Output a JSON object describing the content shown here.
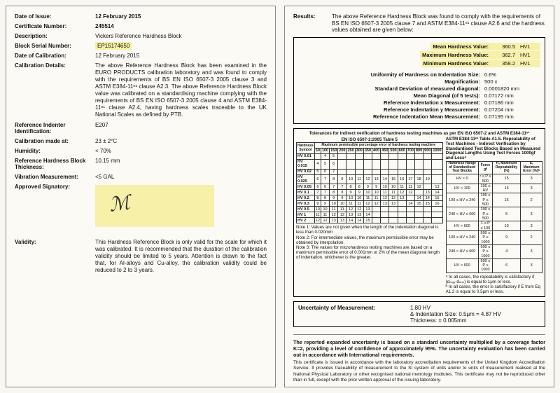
{
  "left": {
    "date_of_issue_label": "Date of Issue:",
    "date_of_issue": "12 February 2015",
    "cert_num_label": "Certificate Number:",
    "cert_num": "245514",
    "desc_label": "Description:",
    "desc": "Vickers Reference Hardness Block",
    "serial_label": "Block Serial Number:",
    "serial": "EP15174650",
    "calib_date_label": "Date of Calibration:",
    "calib_date": "12 February 2015",
    "calib_details_label": "Calibration Details:",
    "calib_details": "The above Reference Hardness Block has been examined in the EURO PRODUCTS calibration laboratory and was found to comply with the requirements of BS EN ISO 6507-3 2005 clause 3 and ASTM E384-11ᵉ¹ clause A2.3. The above Reference Hardness Block value was calibrated on a standardising machine complying with the requirements of BS EN ISO 6507-3 2005 clause 4 and ASTM E384-11ᵉ¹ clause A2.4, having hardness scales traceable to the UK National Scales as defined by PTB.",
    "indenter_label": "Reference Indenter Identification:",
    "indenter": "E207",
    "calib_at_label": "Calibration made at:",
    "calib_at": "23 ± 2°C",
    "humidity_label": "Humidity:",
    "humidity": "< 70%",
    "thickness_label": "Reference Hardness Block Thickness:",
    "thickness": "10.15 mm",
    "vibration_label": "Vibration Measurement:",
    "vibration": "<5 GAL",
    "signatory_label": "Approved Signatory:",
    "validity_label": "Validity:",
    "validity": "This Hardness Reference Block is only valid for the scale for which it was calibrated. It is recommended that the duration of the calibration validity should be limited to 5 years. Attention is drawn to the fact that, for Al-alloys and Cu-alloy, the calibration validity could be reduced to 2 to 3 years."
  },
  "right": {
    "results_label": "Results:",
    "results_intro": "The above Reference Hardness Block was found to comply with the requirements of BS EN ISO 6507-3 2005 clause 7 and ASTM E384-11ᵉ¹ clause A2.6 and the hardness values obtained are given below:",
    "mean_label": "Mean Hardness Value:",
    "mean_val": "360.5",
    "mean_unit": "HV1",
    "max_label": "Maximum Hardness Value:",
    "max_val": "362.7",
    "max_unit": "HV1",
    "min_label": "Minimum Hardness Value:",
    "min_val": "358.2",
    "min_unit": "HV1",
    "uniformity_label": "Uniformity of Hardness on Indentation Size:",
    "uniformity": "0.6%",
    "mag_label": "Magnification:",
    "mag": "500 x",
    "sd_label": "Standard Deviation of measured diagonal:",
    "sd": "0.0001820 mm",
    "meandiag_label": "Mean Diagonal (of 5 tests):",
    "meandiag": "0.07172 mm",
    "refx_label": "Reference Indentation x Measurement:",
    "refx": "0.07186 mm",
    "refy_label": "Reference Indentation y Measurement:",
    "refy": "0.07204 mm",
    "refmean_label": "Reference Indentation Mean Measurement:",
    "refmean": "0.07195 mm",
    "tol_title": "Tolerances for indirect verification of hardness testing machines as per EN ISO 6507-2 and ASTM E384-11ᵉ¹",
    "t5_title": "EN ISO 6507-2:2005 Table 5",
    "t5_sub": "Maximum permissible percentage error of hardness testing machine",
    "a15_title": "ASTM E384-11ᵉ¹ Table A1.5. Repeatability of Test Machines - Indirect Verification by Standardised Test Blocks Based on Measured Diagonal Lengths Using Test Forces 1000gf and Lessᴬ",
    "t5_rows_label": [
      "HV 0.01",
      "HV 0.015",
      "HV 0.02",
      "HV 0.025",
      "HV 0.05",
      "HV 0.1",
      "HV 0.2",
      "HV 0.3",
      "HV 0.5",
      "HV 1",
      "HV 2"
    ],
    "t5_cols": [
      "50",
      "100",
      "150",
      "200",
      "250",
      "300",
      "350",
      "400",
      "450",
      "500",
      "600",
      "700",
      "800",
      "900",
      "1000"
    ],
    "a15_rows": [
      [
        "HV < 0",
        "r ≤ P ≤ 500",
        "15",
        "3"
      ],
      [
        "HV < 100",
        "100 ≤ HV",
        "15",
        "3"
      ],
      [
        "100 ≤ HV ≤ 240",
        "100 ≤ P ≤ 500",
        "15",
        "2"
      ],
      [
        "240 < HV ≤ 600",
        "100 ≤ P ≤ 500",
        "5",
        "3"
      ],
      [
        "HV > 600",
        "1 ≤ P ≤ 100",
        "10",
        "3"
      ],
      [
        "100 ≤ HV ≤ 240",
        "500 ≤ P ≤ 1000",
        "9",
        "2"
      ],
      [
        "240 < HV ≤ 600",
        "500 ≤ P ≤ 1000",
        "4",
        "3"
      ],
      [
        "HV > 600",
        "500 ≤ P ≤ 1000",
        "6",
        "3"
      ]
    ],
    "a15_headers": [
      "Hardness Range of Standardised Test Blocks",
      "Force gf",
      "R, Maximum Repeatability (%)",
      "E, Maximum Error (%)ᴮ"
    ],
    "note1": "Note 1: Values are not given when the length of the indentation diagonal is less than 0.020mm",
    "note2": "Note 2: For intermediate values, the maximum permissible error may be obtained by interpolation.",
    "note3": "Note 3: The values for microhardness testing machines are based on a maximum permissible error of 0.001mm or 2% of the mean diagonal length of indentation, whichever is the greater.",
    "a15_footA": "ᴬ In all cases, the repeatability is satisfactory if (dₘₐₓ-dₘᵢₙ) is equal to 1μm or less.",
    "a15_footB": "ᴮ In all cases, the error is satisfactory if E from Eq A1.2 is equal to 0.5μm or less.",
    "uom_label": "Uncertainty of Measurement:",
    "uom_hv": "1.80 HV",
    "uom_indent": "& Indentation Size: 0.5μm = 4.87 HV",
    "uom_thick": "Thickness: ± 0.005mm",
    "footer_bold": "The reported expanded uncertainty is based on a standard uncertainty multiplied by a coverage factor K=2, providing a level of confidence of approximately 95%. The uncertainty evaluation has been carried out in accordance with International requirements.",
    "footer_fine": "This certificate is issued in accordance with the laboratory accreditation requirements of the United Kingdom Accreditation Service. It provides traceability of measurement to the SI system of units and/or to units of measurement realised at the National Physical Laboratory or other recognised national metrology institutes. This certificate may not be reproduced other than in full, except with the prior written approval of the issuing laboratory."
  },
  "colors": {
    "highlight": "#f6f0a8",
    "border": "#000000",
    "bg": "#fbfaf5"
  }
}
